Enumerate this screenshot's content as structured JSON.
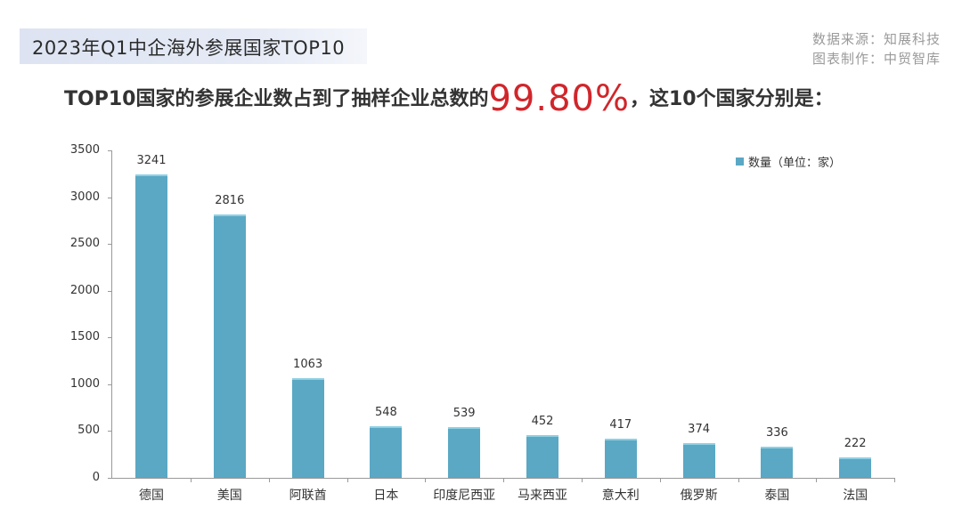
{
  "header": {
    "title": "2023年Q1中企海外参展国家TOP10",
    "source_line1": "数据来源：知展科技",
    "source_line2": "图表制作：中贸智库"
  },
  "subtitle": {
    "before": "TOP10国家的参展企业数占到了抽样企业总数的",
    "highlight": "99.80%",
    "after": "，这10个国家分别是："
  },
  "colors": {
    "bar": "#5aa8c4",
    "highlight": "#d0262b",
    "title_bg": "#dde3f2"
  },
  "chart_data": {
    "type": "bar",
    "title": "2023年Q1中企海外参展国家TOP10",
    "categories": [
      "德国",
      "美国",
      "阿联酋",
      "日本",
      "印度尼西亚",
      "马来西亚",
      "意大利",
      "俄罗斯",
      "泰国",
      "法国"
    ],
    "series": [
      {
        "name": "数量（单位：家）",
        "values": [
          3241,
          2816,
          1063,
          548,
          539,
          452,
          417,
          374,
          336,
          222
        ]
      }
    ],
    "xlabel": "",
    "ylabel": "",
    "ylim": [
      0,
      3500
    ],
    "yticks": [
      0,
      500,
      1000,
      1500,
      2000,
      2500,
      3000,
      3500
    ],
    "grid": false,
    "legend_position": "top-right",
    "data_labels": true
  }
}
